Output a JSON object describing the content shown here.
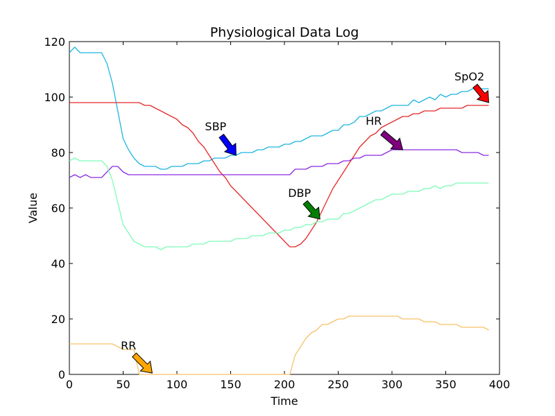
{
  "chart_data": {
    "type": "line",
    "title": "Physiological Data Log",
    "xlabel": "Time",
    "ylabel": "Value",
    "xlim": [
      0,
      400
    ],
    "ylim": [
      0,
      120
    ],
    "xticks": [
      0,
      50,
      100,
      150,
      200,
      250,
      300,
      350,
      400
    ],
    "yticks": [
      0,
      20,
      40,
      60,
      80,
      100,
      120
    ],
    "grid": false,
    "legend": "none",
    "series": [
      {
        "color": "#1fb5e0",
        "x": [
          0,
          5,
          10,
          15,
          20,
          25,
          30,
          35,
          40,
          45,
          50,
          55,
          60,
          65,
          70,
          75,
          80,
          85,
          90,
          95,
          100,
          105,
          110,
          115,
          120,
          125,
          130,
          135,
          140,
          145,
          150,
          155,
          160,
          165,
          170,
          175,
          180,
          185,
          190,
          195,
          200,
          205,
          210,
          215,
          220,
          225,
          230,
          235,
          240,
          245,
          250,
          255,
          260,
          265,
          270,
          275,
          280,
          285,
          290,
          295,
          300,
          305,
          310,
          315,
          320,
          325,
          330,
          335,
          340,
          345,
          350,
          355,
          360,
          365,
          370,
          375,
          380,
          385,
          390
        ],
        "y": [
          116,
          118,
          116,
          116,
          116,
          116,
          116,
          112,
          105,
          95,
          85,
          81,
          78,
          76,
          75,
          75,
          75,
          74,
          74,
          75,
          75,
          75,
          76,
          76,
          76,
          77,
          77,
          78,
          78,
          78,
          79,
          79,
          80,
          80,
          80,
          81,
          81,
          82,
          82,
          82,
          83,
          83,
          84,
          84,
          85,
          86,
          86,
          86,
          87,
          88,
          88,
          90,
          90,
          91,
          93,
          93,
          94,
          95,
          95,
          96,
          97,
          97,
          97,
          97,
          99,
          98,
          99,
          100,
          99,
          101,
          100,
          101,
          101,
          102,
          102,
          103,
          103,
          103,
          103
        ]
      },
      {
        "color": "#e52727",
        "x": [
          0,
          5,
          10,
          15,
          20,
          25,
          30,
          35,
          40,
          45,
          50,
          55,
          60,
          65,
          70,
          75,
          80,
          85,
          90,
          95,
          100,
          105,
          110,
          115,
          120,
          125,
          130,
          135,
          140,
          145,
          150,
          155,
          160,
          165,
          170,
          175,
          180,
          185,
          190,
          195,
          200,
          205,
          210,
          215,
          220,
          225,
          230,
          235,
          240,
          245,
          250,
          255,
          260,
          265,
          270,
          275,
          280,
          285,
          290,
          295,
          300,
          305,
          310,
          315,
          320,
          325,
          330,
          335,
          340,
          345,
          350,
          355,
          360,
          365,
          370,
          375,
          380,
          385,
          390
        ],
        "y": [
          98,
          98,
          98,
          98,
          98,
          98,
          98,
          98,
          98,
          98,
          98,
          98,
          98,
          98,
          97,
          97,
          96,
          95,
          94,
          93,
          92,
          90,
          89,
          87,
          84,
          82,
          79,
          76,
          73,
          71,
          68,
          66,
          64,
          62,
          60,
          58,
          56,
          54,
          52,
          50,
          48,
          46,
          46,
          47,
          49,
          52,
          55,
          59,
          63,
          67,
          70,
          73,
          76,
          79,
          82,
          84,
          86,
          87,
          89,
          90,
          91,
          92,
          93,
          93,
          94,
          94,
          95,
          95,
          95,
          96,
          96,
          96,
          96,
          96,
          97,
          97,
          97,
          97,
          97
        ]
      },
      {
        "color": "#8a2be2",
        "x": [
          0,
          5,
          10,
          15,
          20,
          25,
          30,
          35,
          40,
          45,
          50,
          55,
          60,
          65,
          70,
          75,
          80,
          85,
          90,
          95,
          100,
          105,
          110,
          115,
          120,
          125,
          130,
          135,
          140,
          145,
          150,
          155,
          160,
          165,
          170,
          175,
          180,
          185,
          190,
          195,
          200,
          205,
          210,
          215,
          220,
          225,
          230,
          235,
          240,
          245,
          250,
          255,
          260,
          265,
          270,
          275,
          280,
          285,
          290,
          295,
          300,
          305,
          310,
          315,
          320,
          325,
          330,
          335,
          340,
          345,
          350,
          355,
          360,
          365,
          370,
          375,
          380,
          385,
          390
        ],
        "y": [
          71,
          72,
          71,
          72,
          71,
          71,
          71,
          73,
          75,
          75,
          73,
          72,
          72,
          72,
          72,
          72,
          72,
          72,
          72,
          72,
          72,
          72,
          72,
          72,
          72,
          72,
          72,
          72,
          72,
          72,
          72,
          72,
          72,
          72,
          72,
          72,
          72,
          72,
          72,
          72,
          72,
          72,
          74,
          74,
          74,
          75,
          75,
          75,
          76,
          76,
          76,
          77,
          77,
          78,
          78,
          79,
          79,
          79,
          79,
          80,
          81,
          81,
          81,
          81,
          81,
          81,
          81,
          81,
          81,
          81,
          81,
          81,
          81,
          80,
          80,
          80,
          80,
          79,
          79
        ]
      },
      {
        "color": "#7dfcb8",
        "x": [
          0,
          5,
          10,
          15,
          20,
          25,
          30,
          35,
          40,
          45,
          50,
          55,
          60,
          65,
          70,
          75,
          80,
          85,
          90,
          95,
          100,
          105,
          110,
          115,
          120,
          125,
          130,
          135,
          140,
          145,
          150,
          155,
          160,
          165,
          170,
          175,
          180,
          185,
          190,
          195,
          200,
          205,
          210,
          215,
          220,
          225,
          230,
          235,
          240,
          245,
          250,
          255,
          260,
          265,
          270,
          275,
          280,
          285,
          290,
          295,
          300,
          305,
          310,
          315,
          320,
          325,
          330,
          335,
          340,
          345,
          350,
          355,
          360,
          365,
          370,
          375,
          380,
          385,
          390
        ],
        "y": [
          77,
          78,
          77,
          77,
          77,
          77,
          77,
          75,
          70,
          62,
          54,
          51,
          48,
          47,
          46,
          46,
          46,
          45,
          46,
          46,
          46,
          46,
          46,
          47,
          47,
          47,
          48,
          48,
          48,
          48,
          48,
          49,
          49,
          49,
          50,
          50,
          50,
          51,
          51,
          51,
          52,
          52,
          53,
          53,
          54,
          54,
          55,
          55,
          56,
          56,
          56,
          58,
          58,
          59,
          60,
          61,
          62,
          63,
          63,
          64,
          65,
          65,
          65,
          66,
          66,
          66,
          67,
          67,
          68,
          67,
          68,
          68,
          69,
          69,
          69,
          69,
          69,
          69,
          69
        ]
      },
      {
        "color": "#f7c26b",
        "x": [
          0,
          5,
          10,
          15,
          20,
          25,
          30,
          35,
          40,
          45,
          50,
          55,
          60,
          65,
          70,
          75,
          80,
          85,
          90,
          95,
          100,
          105,
          110,
          115,
          120,
          125,
          130,
          135,
          140,
          145,
          150,
          155,
          160,
          165,
          170,
          175,
          180,
          185,
          190,
          195,
          200,
          205,
          210,
          215,
          220,
          225,
          230,
          235,
          240,
          245,
          250,
          255,
          260,
          265,
          270,
          275,
          280,
          285,
          290,
          295,
          300,
          305,
          310,
          315,
          320,
          325,
          330,
          335,
          340,
          345,
          350,
          355,
          360,
          365,
          370,
          375,
          380,
          385,
          390
        ],
        "y": [
          11,
          11,
          11,
          11,
          11,
          11,
          11,
          11,
          11,
          10,
          9,
          9,
          9,
          0,
          0,
          0,
          0,
          0,
          0,
          0,
          0,
          0,
          0,
          0,
          0,
          0,
          0,
          0,
          0,
          0,
          0,
          0,
          0,
          0,
          0,
          0,
          0,
          0,
          0,
          0,
          0,
          0,
          7,
          10,
          13,
          15,
          16,
          18,
          18,
          19,
          20,
          20,
          21,
          21,
          21,
          21,
          21,
          21,
          21,
          21,
          21,
          21,
          20,
          20,
          20,
          20,
          19,
          19,
          19,
          18,
          18,
          18,
          18,
          17,
          17,
          17,
          17,
          17,
          16
        ]
      }
    ],
    "annotations": [
      {
        "text": "SBP",
        "text_x": 136,
        "text_y": 88,
        "arrow_x": 155,
        "arrow_y": 79,
        "color": "#0000ff"
      },
      {
        "text": "DBP",
        "text_x": 214,
        "text_y": 64,
        "arrow_x": 233,
        "arrow_y": 56,
        "color": "#008000"
      },
      {
        "text": "HR",
        "text_x": 283,
        "text_y": 90,
        "arrow_x": 310,
        "arrow_y": 81,
        "color": "#800080"
      },
      {
        "text": "SpO2",
        "text_x": 372,
        "text_y": 106,
        "arrow_x": 390,
        "arrow_y": 98,
        "color": "#ff0000"
      },
      {
        "text": "RR",
        "text_x": 55,
        "text_y": 9,
        "arrow_x": 77,
        "arrow_y": 0.5,
        "color": "#ffa500"
      }
    ]
  }
}
